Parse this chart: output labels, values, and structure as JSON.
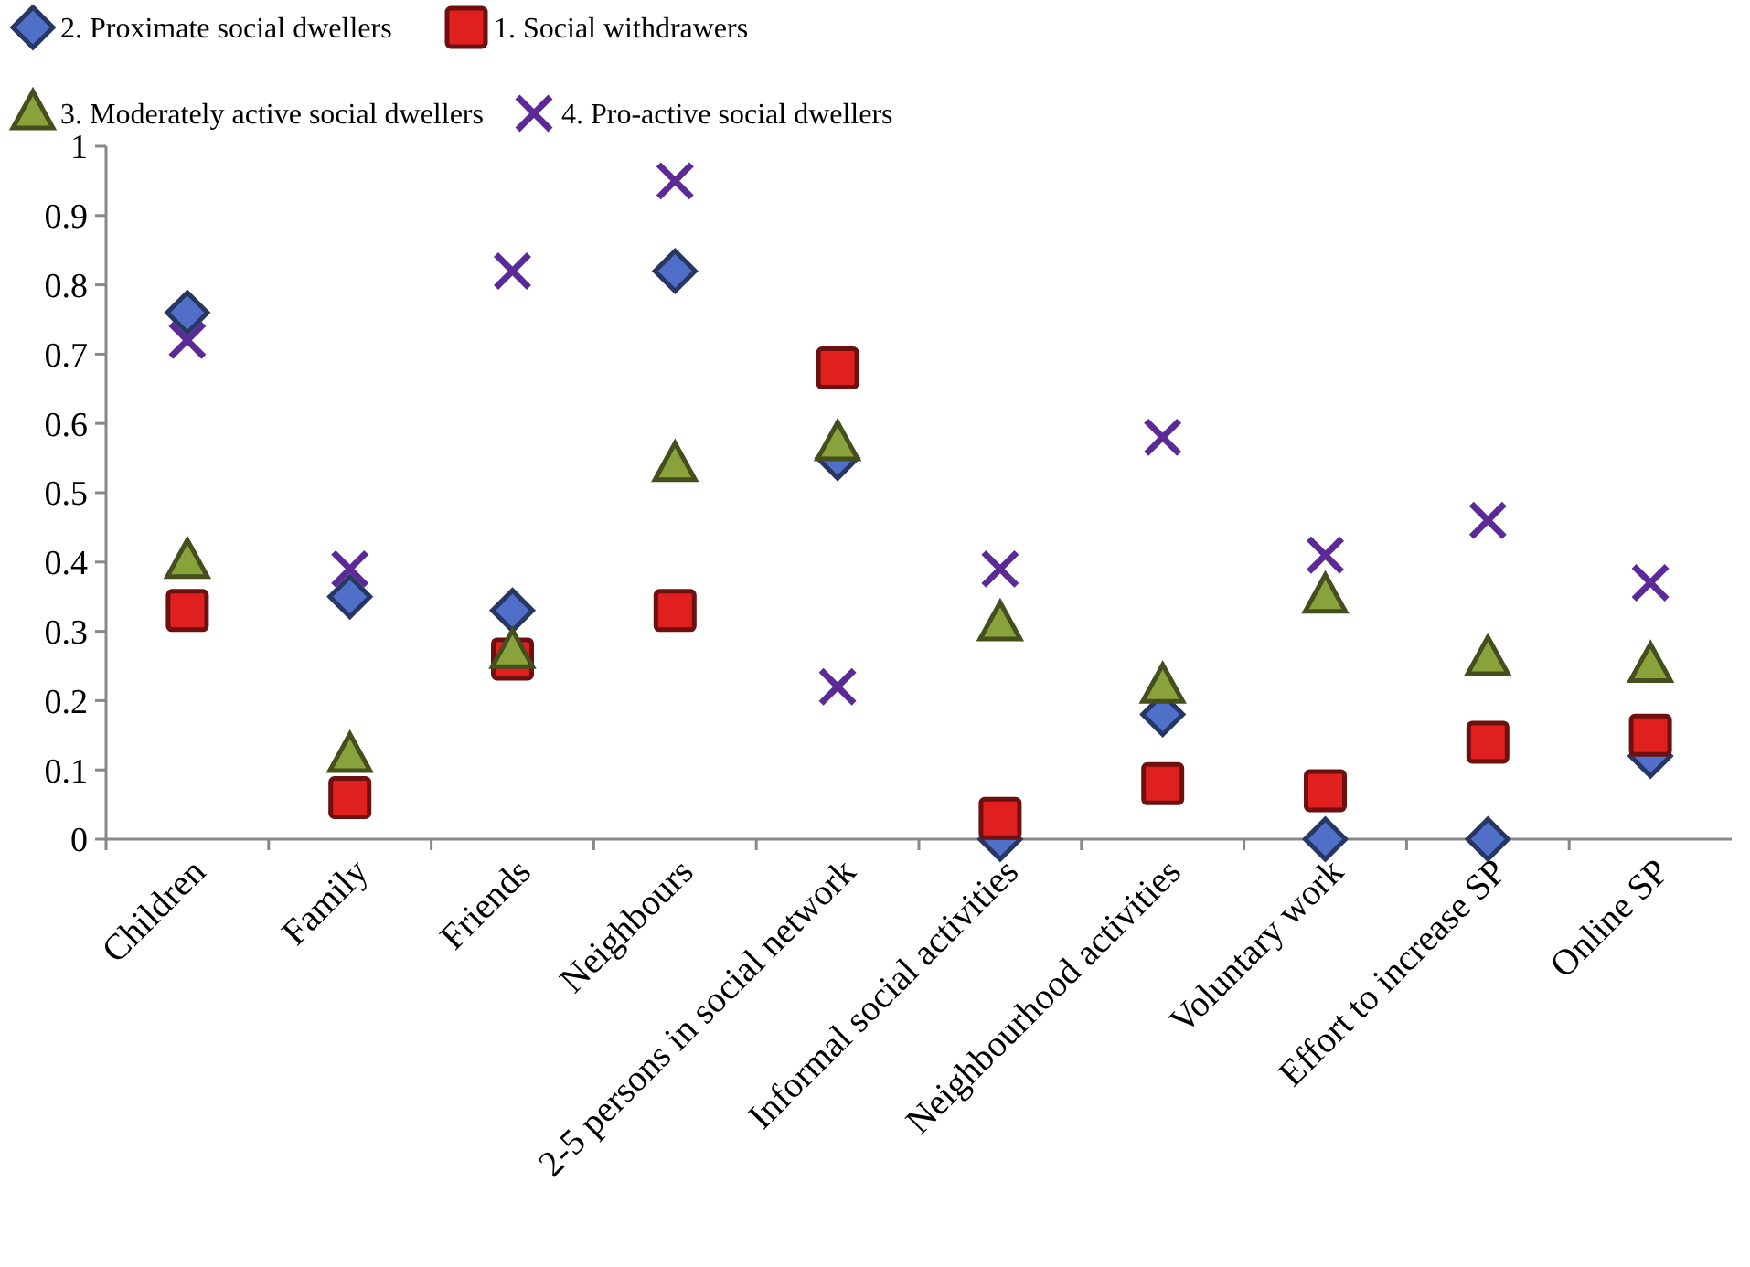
{
  "chart_data": {
    "type": "scatter",
    "categories": [
      "Children",
      "Family",
      "Friends",
      "Neighbours",
      "2-5 persons in social network",
      "Informal social activities",
      "Neighbourhood activities",
      "Voluntary work",
      "Effort to increase SP",
      "Online SP"
    ],
    "series": [
      {
        "name": "2. Proximate social dwellers",
        "color": "#4f6fc8",
        "marker": "diamond",
        "values": [
          0.76,
          0.35,
          0.33,
          0.82,
          0.55,
          0.0,
          0.18,
          0.0,
          0.0,
          0.12
        ]
      },
      {
        "name": "1. Social withdrawers",
        "color": "#e0201f",
        "marker": "square",
        "values": [
          0.33,
          0.06,
          0.26,
          0.33,
          0.68,
          0.03,
          0.08,
          0.07,
          0.14,
          0.15
        ]
      },
      {
        "name": "3. Moderately active social dwellers",
        "color": "#8aa23c",
        "marker": "triangle",
        "values": [
          0.4,
          0.12,
          0.27,
          0.54,
          0.57,
          0.31,
          0.22,
          0.35,
          0.26,
          0.25
        ]
      },
      {
        "name": "4. Pro-active social dwellers",
        "color": "#5b2a96",
        "marker": "cross",
        "values": [
          0.72,
          0.39,
          0.82,
          0.95,
          0.22,
          0.39,
          0.58,
          0.41,
          0.46,
          0.37
        ]
      }
    ],
    "ylim": [
      0,
      1
    ],
    "yticks": [
      0,
      0.1,
      0.2,
      0.3,
      0.4,
      0.5,
      0.6,
      0.7,
      0.8,
      0.9,
      1
    ],
    "grid": false,
    "legend": "top"
  }
}
